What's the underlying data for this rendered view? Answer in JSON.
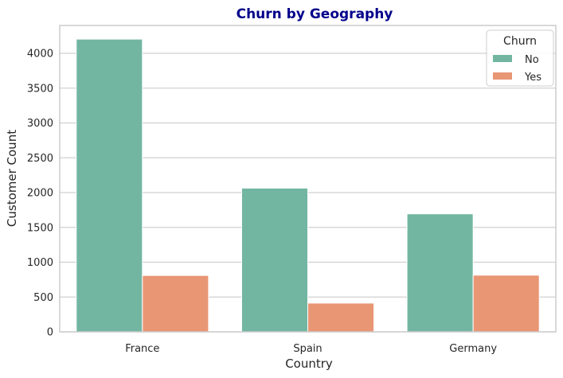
{
  "chart_data": {
    "type": "bar",
    "title": "Churn by Geography",
    "xlabel": "Country",
    "ylabel": "Customer Count",
    "categories": [
      "France",
      "Spain",
      "Germany"
    ],
    "series": [
      {
        "name": "No",
        "values": [
          4204,
          2064,
          1695
        ]
      },
      {
        "name": "Yes",
        "values": [
          810,
          413,
          814
        ]
      }
    ],
    "ylim": [
      0,
      4400
    ],
    "yticks": [
      0,
      500,
      1000,
      1500,
      2000,
      2500,
      3000,
      3500,
      4000
    ],
    "grid": true,
    "legend": {
      "title": "Churn",
      "position": "top-right"
    }
  },
  "colors": {
    "title": "#00008b",
    "series": [
      "#72b6a1",
      "#e99675"
    ],
    "grid": "#d0d0d0",
    "spine": "#cccccc"
  }
}
